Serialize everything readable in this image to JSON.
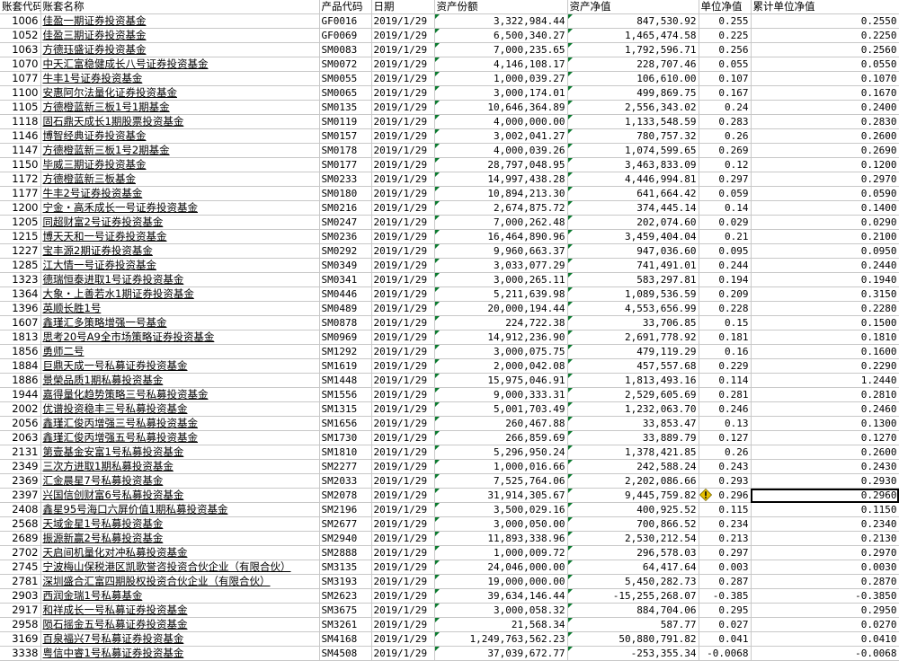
{
  "header": [
    "账套代码",
    "账套名称",
    "产品代码",
    "日期",
    "资产份额",
    "资产净值",
    "单位净值",
    "累计单位净值"
  ],
  "rows": [
    [
      "1006",
      "佳盈一期证券投资基金",
      "GF0016",
      "2019/1/29",
      "3,322,984.44",
      "847,530.92",
      "0.255",
      "0.2550"
    ],
    [
      "1052",
      "佳盈三期证券投资基金",
      "GF0069",
      "2019/1/29",
      "6,500,340.27",
      "1,465,474.58",
      "0.225",
      "0.2250"
    ],
    [
      "1063",
      "方德珏盛证券投资基金",
      "SM0083",
      "2019/1/29",
      "7,000,235.65",
      "1,792,596.71",
      "0.256",
      "0.2560"
    ],
    [
      "1070",
      "中天汇富稳健成长八号证券投资基金",
      "SM0072",
      "2019/1/29",
      "4,146,108.17",
      "228,707.46",
      "0.055",
      "0.0550"
    ],
    [
      "1077",
      "牛丰1号证券投资基金",
      "SM0055",
      "2019/1/29",
      "1,000,039.27",
      "106,610.00",
      "0.107",
      "0.1070"
    ],
    [
      "1100",
      "安惠阿尔法量化证券投资基金",
      "SM0065",
      "2019/1/29",
      "3,000,174.01",
      "499,869.75",
      "0.167",
      "0.1670"
    ],
    [
      "1105",
      "方德橙蓝新三板1号1期基金",
      "SM0135",
      "2019/1/29",
      "10,646,364.89",
      "2,556,343.02",
      "0.24",
      "0.2400"
    ],
    [
      "1118",
      "固石鼎天成长1期股票投资基金",
      "SM0119",
      "2019/1/29",
      "4,000,000.00",
      "1,133,548.59",
      "0.283",
      "0.2830"
    ],
    [
      "1146",
      "博智经典证券投资基金",
      "SM0157",
      "2019/1/29",
      "3,002,041.27",
      "780,757.32",
      "0.26",
      "0.2600"
    ],
    [
      "1147",
      "方德橙蓝新三板1号2期基金",
      "SM0178",
      "2019/1/29",
      "4,000,039.26",
      "1,074,599.65",
      "0.269",
      "0.2690"
    ],
    [
      "1150",
      "毕威三期证券投资基金",
      "SM0177",
      "2019/1/29",
      "28,797,048.95",
      "3,463,833.09",
      "0.12",
      "0.1200"
    ],
    [
      "1172",
      "方德橙蓝新三板基金",
      "SM0233",
      "2019/1/29",
      "14,997,438.28",
      "4,446,994.81",
      "0.297",
      "0.2970"
    ],
    [
      "1177",
      "牛丰2号证券投资基金",
      "SM0180",
      "2019/1/29",
      "10,894,213.30",
      "641,664.42",
      "0.059",
      "0.0590"
    ],
    [
      "1200",
      "宁金・高禾成长一号证券投资基金",
      "SM0216",
      "2019/1/29",
      "2,674,875.72",
      "374,445.14",
      "0.14",
      "0.1400"
    ],
    [
      "1205",
      "同超财富2号证券投资基金",
      "SM0247",
      "2019/1/29",
      "7,000,262.48",
      "202,074.60",
      "0.029",
      "0.0290"
    ],
    [
      "1215",
      "博天天和一号证券投资基金",
      "SM0236",
      "2019/1/29",
      "16,464,890.96",
      "3,459,404.04",
      "0.21",
      "0.2100"
    ],
    [
      "1227",
      "宝丰源2期证券投资基金",
      "SM0292",
      "2019/1/29",
      "9,960,663.37",
      "947,036.60",
      "0.095",
      "0.0950"
    ],
    [
      "1285",
      "江大情一号证券投资基金",
      "SM0349",
      "2019/1/29",
      "3,033,077.29",
      "741,491.01",
      "0.244",
      "0.2440"
    ],
    [
      "1323",
      "德瑞恒泰进取1号证券投资基金",
      "SM0341",
      "2019/1/29",
      "3,000,265.11",
      "583,297.81",
      "0.194",
      "0.1940"
    ],
    [
      "1364",
      "大象・上善若水1期证券投资基金",
      "SM0446",
      "2019/1/29",
      "5,211,639.98",
      "1,089,536.59",
      "0.209",
      "0.3150"
    ],
    [
      "1396",
      "英顺长胜1号",
      "SM0489",
      "2019/1/29",
      "20,000,194.44",
      "4,553,656.99",
      "0.228",
      "0.2280"
    ],
    [
      "1607",
      "鑫瑾汇多策略增强一号基金",
      "SM0878",
      "2019/1/29",
      "224,722.38",
      "33,706.85",
      "0.15",
      "0.1500"
    ],
    [
      "1813",
      "思考20号A9全市场策略证券投资基金",
      "SM0969",
      "2019/1/29",
      "14,912,236.90",
      "2,691,778.92",
      "0.181",
      "0.1810"
    ],
    [
      "1856",
      "勇师二号",
      "SM1292",
      "2019/1/29",
      "3,000,075.75",
      "479,119.29",
      "0.16",
      "0.1600"
    ],
    [
      "1884",
      "巨鼎天成一号私募证券投资基金",
      "SM1619",
      "2019/1/29",
      "2,000,042.08",
      "457,557.68",
      "0.229",
      "0.2290"
    ],
    [
      "1886",
      "景榮品质1期私募投资基金",
      "SM1448",
      "2019/1/29",
      "15,975,046.91",
      "1,813,493.16",
      "0.114",
      "1.2440"
    ],
    [
      "1944",
      "嘉得量化趋势策略三号私募投资基金",
      "SM1556",
      "2019/1/29",
      "9,000,333.31",
      "2,529,605.69",
      "0.281",
      "0.2810"
    ],
    [
      "2002",
      "优谱投资稳丰三号私募投资基金",
      "SM1315",
      "2019/1/29",
      "5,001,703.49",
      "1,232,063.70",
      "0.246",
      "0.2460"
    ],
    [
      "2056",
      "鑫瑾汇俊丙增强三号私募投资基金",
      "SM1656",
      "2019/1/29",
      "260,467.88",
      "33,853.47",
      "0.13",
      "0.1300"
    ],
    [
      "2063",
      "鑫瑾汇俊丙增强五号私募投资基金",
      "SM1730",
      "2019/1/29",
      "266,859.69",
      "33,889.79",
      "0.127",
      "0.1270"
    ],
    [
      "2131",
      "第壹基金安富1号私募投资基金",
      "SM1810",
      "2019/1/29",
      "5,296,950.24",
      "1,378,421.85",
      "0.26",
      "0.2600"
    ],
    [
      "2349",
      "三次方进取1期私募投资基金",
      "SM2277",
      "2019/1/29",
      "1,000,016.66",
      "242,588.24",
      "0.243",
      "0.2430"
    ],
    [
      "2369",
      "汇金晨星7号私募投资基金",
      "SM2033",
      "2019/1/29",
      "7,525,764.06",
      "2,202,086.66",
      "0.293",
      "0.2930"
    ],
    [
      "2397",
      "兴国信创财富6号私募投资基金",
      "SM2078",
      "2019/1/29",
      "31,914,305.67",
      "9,445,759.82",
      "0.296",
      "0.2960"
    ],
    [
      "2408",
      "鑫星95号海口六屏价值1期私募投资基金",
      "SM2196",
      "2019/1/29",
      "3,500,029.16",
      "400,925.52",
      "0.115",
      "0.1150"
    ],
    [
      "2568",
      "天域金星1号私募投资基金",
      "SM2677",
      "2019/1/29",
      "3,000,050.00",
      "700,866.52",
      "0.234",
      "0.2340"
    ],
    [
      "2689",
      "振源新赢2号私募投资基金",
      "SM2940",
      "2019/1/29",
      "11,893,338.96",
      "2,530,212.54",
      "0.213",
      "0.2130"
    ],
    [
      "2702",
      "天启间机量化对冲私募投资基金",
      "SM2888",
      "2019/1/29",
      "1,000,009.72",
      "296,578.03",
      "0.297",
      "0.2970"
    ],
    [
      "2745",
      "宁波梅山保税港区凯歌誉咨投资合伙企业（有限合伙）",
      "SM3135",
      "2019/1/29",
      "24,046,000.00",
      "64,417.64",
      "0.003",
      "0.0030"
    ],
    [
      "2781",
      "深圳盛合汇富四期股权投资合伙企业（有限合伙）",
      "SM3193",
      "2019/1/29",
      "19,000,000.00",
      "5,450,282.73",
      "0.287",
      "0.2870"
    ],
    [
      "2903",
      "西润金瑞1号私募基金",
      "SM2623",
      "2019/1/29",
      "39,634,146.44",
      "-15,255,268.07",
      "-0.385",
      "-0.3850"
    ],
    [
      "2917",
      "和祥成长一号私募证券投资基金",
      "SM3675",
      "2019/1/29",
      "3,000,058.32",
      "884,704.06",
      "0.295",
      "0.2950"
    ],
    [
      "2958",
      "陨石摇金五号私募证券投资基金",
      "SM3261",
      "2019/1/29",
      "21,568.34",
      "587.77",
      "0.027",
      "0.0270"
    ],
    [
      "3169",
      "百泉福兴7号私募证券投资基金",
      "SM4168",
      "2019/1/29",
      "1,249,763,562.23",
      "50,880,791.82",
      "0.041",
      "0.0410"
    ],
    [
      "3338",
      "粤信中睿1号私募证券投资基金",
      "SM4508",
      "2019/1/29",
      "37,039,672.77",
      "-253,355.34",
      "-0.0068",
      "-0.0068"
    ]
  ],
  "warning_row_index": 33,
  "icons": {
    "warning": "warning-diamond-icon",
    "indicator": "green-triangle-indicator"
  },
  "colors": {
    "grid": "#c8c8c8",
    "indicator": "#0a7a2e",
    "warn": "#e8c000"
  }
}
